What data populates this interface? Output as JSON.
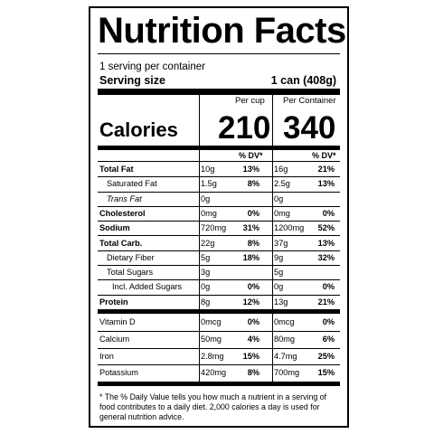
{
  "title": "Nutrition Facts",
  "servings": "1 serving per container",
  "serving_size_label": "Serving size",
  "serving_size_value": "1 can (408g)",
  "col_per_cup": "Per cup",
  "col_per_container": "Per Container",
  "calories_label": "Calories",
  "calories_cup": "210",
  "calories_container": "340",
  "dv_label": "% DV*",
  "nutrients": [
    {
      "name": "Total Fat",
      "cup_amt": "10g",
      "cup_dv": "13%",
      "cont_amt": "16g",
      "cont_dv": "21%",
      "bold": true
    },
    {
      "name": "Saturated Fat",
      "cup_amt": "1.5g",
      "cup_dv": "8%",
      "cont_amt": "2.5g",
      "cont_dv": "13%"
    },
    {
      "name": "Trans Fat",
      "cup_amt": "0g",
      "cup_dv": "",
      "cont_amt": "0g",
      "cont_dv": "",
      "italic": true
    },
    {
      "name": "Cholesterol",
      "cup_amt": "0mg",
      "cup_dv": "0%",
      "cont_amt": "0mg",
      "cont_dv": "0%",
      "bold": true
    },
    {
      "name": "Sodium",
      "cup_amt": "720mg",
      "cup_dv": "31%",
      "cont_amt": "1200mg",
      "cont_dv": "52%",
      "bold": true
    },
    {
      "name": "Total Carb.",
      "cup_amt": "22g",
      "cup_dv": "8%",
      "cont_amt": "37g",
      "cont_dv": "13%",
      "bold": true
    },
    {
      "name": "Dietary Fiber",
      "cup_amt": "5g",
      "cup_dv": "18%",
      "cont_amt": "9g",
      "cont_dv": "32%"
    },
    {
      "name": "Total Sugars",
      "cup_amt": "3g",
      "cup_dv": "",
      "cont_amt": "5g",
      "cont_dv": ""
    },
    {
      "name": "Incl. Added Sugars",
      "cup_amt": "0g",
      "cup_dv": "0%",
      "cont_amt": "0g",
      "cont_dv": "0%"
    },
    {
      "name": "Protein",
      "cup_amt": "8g",
      "cup_dv": "12%",
      "cont_amt": "13g",
      "cont_dv": "21%",
      "bold": true
    }
  ],
  "vitamins": [
    {
      "name": "Vitamin D",
      "cup_amt": "0mcg",
      "cup_dv": "0%",
      "cont_amt": "0mcg",
      "cont_dv": "0%"
    },
    {
      "name": "Calcium",
      "cup_amt": "50mg",
      "cup_dv": "4%",
      "cont_amt": "80mg",
      "cont_dv": "6%"
    },
    {
      "name": "Iron",
      "cup_amt": "2.8mg",
      "cup_dv": "15%",
      "cont_amt": "4.7mg",
      "cont_dv": "25%"
    },
    {
      "name": "Potassium",
      "cup_amt": "420mg",
      "cup_dv": "8%",
      "cont_amt": "700mg",
      "cont_dv": "15%"
    }
  ],
  "footnote": "* The % Daily Value tells you how much a nutrient in a serving of food contributes to a daily diet. 2,000 calories a day is used for general nutrition advice."
}
